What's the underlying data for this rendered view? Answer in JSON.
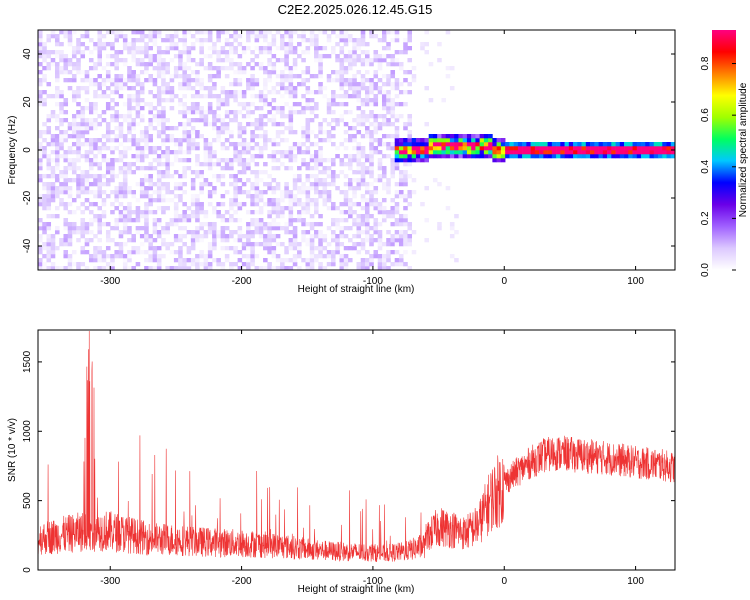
{
  "title": "C2E2.2025.026.12.45.G15",
  "chart_data": [
    {
      "type": "heatmap",
      "xlabel": "Height of straight line (km)",
      "ylabel": "Frequency (Hz)",
      "xlim": [
        -355,
        130
      ],
      "ylim": [
        -50,
        50
      ],
      "x_ticks": [
        "-300",
        "-200",
        "-100",
        "0",
        "100"
      ],
      "y_ticks": [
        "-40",
        "-20",
        "0",
        "20",
        "40"
      ],
      "colorbar": {
        "label": "Normalized spectral amplitude",
        "range": [
          0,
          0.93
        ],
        "ticks": [
          "0.0",
          "0.2",
          "0.4",
          "0.6",
          "0.8"
        ],
        "colormap": [
          "#ffffff",
          "#dcc8ff",
          "#a060ff",
          "#6a00e8",
          "#0000ff",
          "#00c8ff",
          "#00ff60",
          "#a0ff00",
          "#ffff00",
          "#ff8000",
          "#ff0000",
          "#ff0080"
        ]
      },
      "regions": [
        {
          "name": "noise",
          "x_range": [
            -355,
            -68
          ],
          "amplitude_range": [
            0.0,
            0.12
          ]
        },
        {
          "name": "signal",
          "x_range": [
            -85,
            130
          ],
          "center_frequency": 0,
          "peak_amplitude": 0.93
        }
      ]
    },
    {
      "type": "line",
      "xlabel": "Height of straight line (km)",
      "ylabel": "SNR (10 * v/v)",
      "xlim": [
        -355,
        130
      ],
      "ylim": [
        0,
        1730
      ],
      "x_ticks": [
        "-300",
        "-200",
        "-100",
        "0",
        "100"
      ],
      "y_ticks": [
        "0",
        "500",
        "1000",
        "1500"
      ],
      "color": "#ee3333",
      "series": [
        {
          "x": [
            -355,
            -340,
            -320,
            -305,
            -290,
            -270,
            -250,
            -230,
            -210,
            -190,
            -170,
            -150,
            -130,
            -110,
            -90,
            -75,
            -60,
            -50,
            -40,
            -30,
            -20,
            -10,
            0,
            10,
            20,
            30,
            40,
            50,
            60,
            80,
            100,
            120,
            130
          ],
          "y": [
            300,
            330,
            370,
            380,
            350,
            300,
            290,
            270,
            260,
            250,
            230,
            200,
            180,
            170,
            160,
            180,
            240,
            330,
            310,
            280,
            340,
            540,
            650,
            730,
            800,
            850,
            870,
            860,
            850,
            830,
            800,
            780,
            760
          ]
        }
      ]
    }
  ]
}
